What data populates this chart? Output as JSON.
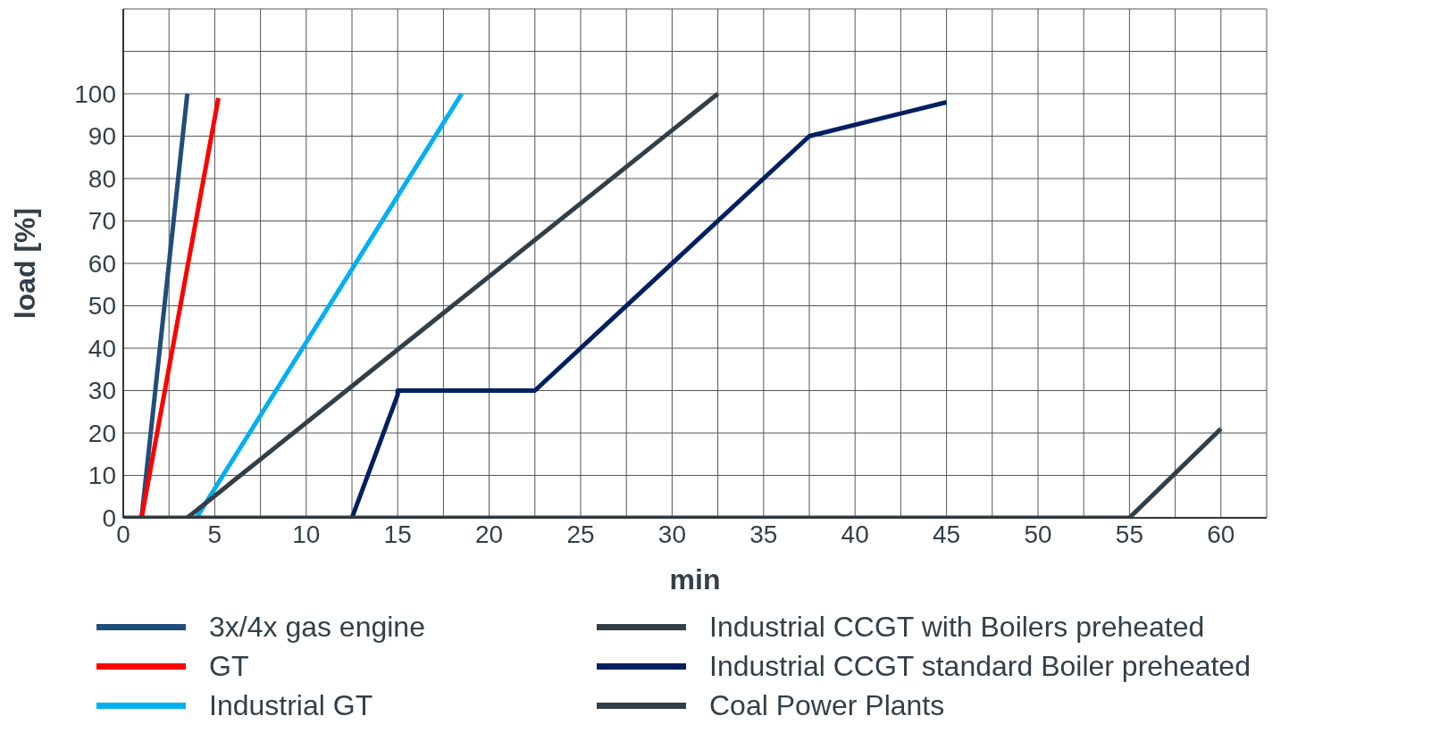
{
  "chart_data": {
    "type": "line",
    "xlabel": "min",
    "ylabel": "load [%]",
    "xlim": [
      0,
      62.5
    ],
    "ylim": [
      0,
      120
    ],
    "xticks": [
      0,
      {
        "value": 2.5,
        "label": null
      },
      5,
      {
        "value": 7.5,
        "label": null
      },
      10,
      {
        "value": 12.5,
        "label": null
      },
      15,
      {
        "value": 17.5,
        "label": null
      },
      20,
      {
        "value": 22.5,
        "label": null
      },
      25,
      {
        "value": 27.5,
        "label": null
      },
      30,
      {
        "value": 32.5,
        "label": null
      },
      35,
      {
        "value": 37.5,
        "label": null
      },
      40,
      {
        "value": 42.5,
        "label": null
      },
      45,
      {
        "value": 47.5,
        "label": null
      },
      50,
      {
        "value": 52.5,
        "label": null
      },
      55,
      {
        "value": 57.5,
        "label": null
      },
      60,
      {
        "value": 62.5,
        "label": null
      }
    ],
    "yticks": [
      0,
      10,
      20,
      30,
      40,
      50,
      60,
      70,
      80,
      90,
      100,
      {
        "value": 110,
        "label": null
      },
      {
        "value": 120,
        "label": null
      }
    ],
    "grid": true,
    "legend": "bottom",
    "marker": "none",
    "line_style": "solid",
    "series": [
      {
        "name": "3x/4x gas engine",
        "color": "#1f4e79",
        "x": [
          1,
          3.5
        ],
        "values": [
          0,
          100
        ]
      },
      {
        "name": "GT",
        "color": "#ff0000",
        "x": [
          1,
          5.2
        ],
        "values": [
          0,
          99
        ]
      },
      {
        "name": "Industrial GT",
        "color": "#00b0f0",
        "x": [
          4,
          18.5
        ],
        "values": [
          0,
          100
        ]
      },
      {
        "name": "Industrial CCGT with Boilers preheated",
        "color": "#333f48",
        "x": [
          3.5,
          32.5
        ],
        "values": [
          0,
          100
        ]
      },
      {
        "name": "Industrial CCGT standard Boiler preheated",
        "color": "#002060",
        "x": [
          12.5,
          15,
          15,
          22.5,
          37.5,
          45
        ],
        "values": [
          0,
          29,
          30,
          30,
          90,
          98
        ]
      },
      {
        "name": "Coal Power Plants",
        "color": "#333f48",
        "x": [
          0,
          55,
          60
        ],
        "values": [
          0,
          0,
          21
        ]
      }
    ]
  }
}
